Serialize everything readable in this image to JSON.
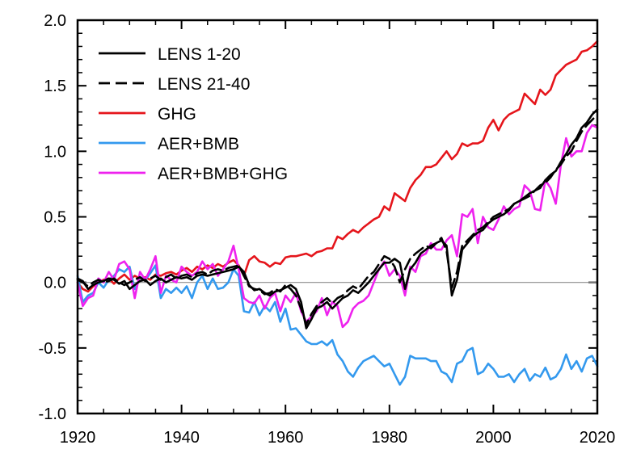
{
  "chart_data": {
    "type": "line",
    "title": "",
    "xlabel": "",
    "ylabel": "",
    "xlim": [
      1920,
      2020
    ],
    "ylim": [
      -1.0,
      2.0
    ],
    "grid": false,
    "reference_line": 0.0,
    "legend_position": "top-left",
    "x_ticks": [
      1920,
      1940,
      1960,
      1980,
      2000,
      2020
    ],
    "y_ticks": [
      -1.0,
      -0.5,
      0.0,
      0.5,
      1.0,
      1.5,
      2.0
    ],
    "x_tick_labels": [
      "1920",
      "1940",
      "1960",
      "1980",
      "2000",
      "2020"
    ],
    "y_tick_labels": [
      "-1.0",
      "-0.5",
      "0.0",
      "0.5",
      "1.0",
      "1.5",
      "2.0"
    ],
    "x": [
      1920,
      1921,
      1922,
      1923,
      1924,
      1925,
      1926,
      1927,
      1928,
      1929,
      1930,
      1931,
      1932,
      1933,
      1934,
      1935,
      1936,
      1937,
      1938,
      1939,
      1940,
      1941,
      1942,
      1943,
      1944,
      1945,
      1946,
      1947,
      1948,
      1949,
      1950,
      1951,
      1952,
      1953,
      1954,
      1955,
      1956,
      1957,
      1958,
      1959,
      1960,
      1961,
      1962,
      1963,
      1964,
      1965,
      1966,
      1967,
      1968,
      1969,
      1970,
      1971,
      1972,
      1973,
      1974,
      1975,
      1976,
      1977,
      1978,
      1979,
      1980,
      1981,
      1982,
      1983,
      1984,
      1985,
      1986,
      1987,
      1988,
      1989,
      1990,
      1991,
      1992,
      1993,
      1994,
      1995,
      1996,
      1997,
      1998,
      1999,
      2000,
      2001,
      2002,
      2003,
      2004,
      2005,
      2006,
      2007,
      2008,
      2009,
      2010,
      2011,
      2012,
      2013,
      2014,
      2015,
      2016,
      2017,
      2018,
      2019,
      2020
    ],
    "series": [
      {
        "name": "LENS 1-20",
        "color": "#000000",
        "dash": "solid",
        "values": [
          0.03,
          0.01,
          -0.05,
          -0.02,
          0.0,
          0.01,
          0.03,
          0.02,
          -0.01,
          0.01,
          -0.05,
          -0.02,
          0.01,
          0.02,
          -0.02,
          0.01,
          0.03,
          0.0,
          0.02,
          0.04,
          0.03,
          0.04,
          0.02,
          0.05,
          0.06,
          0.05,
          0.06,
          0.07,
          0.08,
          0.09,
          0.1,
          0.12,
          0.08,
          -0.02,
          -0.06,
          -0.05,
          -0.08,
          -0.1,
          -0.07,
          -0.06,
          -0.04,
          -0.02,
          -0.05,
          -0.15,
          -0.35,
          -0.28,
          -0.2,
          -0.18,
          -0.15,
          -0.2,
          -0.16,
          -0.12,
          -0.1,
          -0.06,
          -0.08,
          -0.04,
          0.0,
          0.05,
          0.1,
          0.15,
          0.15,
          0.18,
          0.15,
          -0.05,
          0.1,
          0.15,
          0.22,
          0.25,
          0.28,
          0.3,
          0.32,
          0.28,
          -0.1,
          0.02,
          0.25,
          0.3,
          0.35,
          0.38,
          0.4,
          0.45,
          0.48,
          0.5,
          0.52,
          0.55,
          0.6,
          0.62,
          0.65,
          0.68,
          0.7,
          0.72,
          0.78,
          0.82,
          0.85,
          0.92,
          0.98,
          1.05,
          1.1,
          1.18,
          1.22,
          1.28,
          1.32
        ]
      },
      {
        "name": "LENS 21-40",
        "color": "#000000",
        "dash": "dashed",
        "values": [
          0.02,
          0.0,
          -0.03,
          0.0,
          0.02,
          0.0,
          0.01,
          0.03,
          0.0,
          -0.02,
          0.0,
          0.02,
          0.04,
          0.01,
          0.03,
          0.05,
          0.02,
          0.04,
          0.06,
          0.03,
          0.05,
          0.06,
          0.04,
          0.07,
          0.08,
          0.06,
          0.09,
          0.1,
          0.09,
          0.11,
          0.12,
          0.13,
          0.05,
          -0.03,
          -0.05,
          -0.06,
          -0.09,
          -0.08,
          -0.05,
          -0.07,
          -0.02,
          -0.05,
          -0.1,
          -0.2,
          -0.32,
          -0.24,
          -0.18,
          -0.15,
          -0.12,
          -0.16,
          -0.12,
          -0.1,
          -0.06,
          -0.03,
          -0.05,
          0.0,
          0.05,
          0.08,
          0.14,
          0.2,
          0.18,
          0.12,
          0.0,
          0.1,
          0.18,
          0.22,
          0.25,
          0.28,
          0.26,
          0.3,
          0.34,
          0.24,
          -0.04,
          0.08,
          0.28,
          0.32,
          0.36,
          0.4,
          0.42,
          0.46,
          0.5,
          0.52,
          0.54,
          0.56,
          0.6,
          0.62,
          0.64,
          0.66,
          0.7,
          0.74,
          0.76,
          0.8,
          0.86,
          0.9,
          0.96,
          1.0,
          1.08,
          1.15,
          1.2,
          1.24,
          1.28
        ]
      },
      {
        "name": "GHG",
        "color": "#e5151b",
        "dash": "solid",
        "values": [
          0.0,
          -0.05,
          -0.07,
          -0.03,
          0.0,
          0.02,
          0.03,
          -0.01,
          0.03,
          0.06,
          0.02,
          0.05,
          0.03,
          0.04,
          0.02,
          0.06,
          0.05,
          0.07,
          0.08,
          0.06,
          0.09,
          0.11,
          0.08,
          0.12,
          0.1,
          0.13,
          0.11,
          0.14,
          0.12,
          0.15,
          0.17,
          0.13,
          0.05,
          0.17,
          0.2,
          0.16,
          0.15,
          0.12,
          0.15,
          0.14,
          0.19,
          0.2,
          0.2,
          0.21,
          0.22,
          0.2,
          0.23,
          0.24,
          0.26,
          0.26,
          0.35,
          0.33,
          0.37,
          0.4,
          0.38,
          0.42,
          0.45,
          0.48,
          0.5,
          0.58,
          0.55,
          0.68,
          0.65,
          0.62,
          0.72,
          0.78,
          0.82,
          0.88,
          0.88,
          0.9,
          0.95,
          1.0,
          0.94,
          0.98,
          1.06,
          1.04,
          1.06,
          1.06,
          1.08,
          1.18,
          1.24,
          1.16,
          1.24,
          1.28,
          1.3,
          1.32,
          1.44,
          1.4,
          1.36,
          1.47,
          1.43,
          1.47,
          1.58,
          1.62,
          1.66,
          1.68,
          1.7,
          1.76,
          1.77,
          1.8,
          1.84
        ]
      },
      {
        "name": "AER+BMB",
        "color": "#3399ee",
        "dash": "solid",
        "values": [
          0.05,
          -0.15,
          -0.1,
          -0.08,
          0.0,
          -0.04,
          0.02,
          0.05,
          0.1,
          0.08,
          0.12,
          -0.05,
          0.04,
          0.02,
          0.07,
          0.13,
          -0.12,
          -0.05,
          -0.08,
          -0.04,
          -0.08,
          -0.03,
          -0.12,
          0.0,
          0.05,
          -0.05,
          0.03,
          -0.05,
          -0.04,
          0.0,
          0.1,
          0.05,
          -0.22,
          -0.23,
          -0.15,
          -0.25,
          -0.18,
          -0.22,
          -0.15,
          -0.3,
          -0.2,
          -0.36,
          -0.35,
          -0.4,
          -0.45,
          -0.47,
          -0.47,
          -0.45,
          -0.48,
          -0.44,
          -0.55,
          -0.6,
          -0.68,
          -0.72,
          -0.65,
          -0.6,
          -0.58,
          -0.56,
          -0.6,
          -0.64,
          -0.62,
          -0.7,
          -0.78,
          -0.72,
          -0.56,
          -0.58,
          -0.58,
          -0.58,
          -0.6,
          -0.6,
          -0.68,
          -0.7,
          -0.76,
          -0.62,
          -0.6,
          -0.52,
          -0.5,
          -0.7,
          -0.68,
          -0.62,
          -0.66,
          -0.72,
          -0.72,
          -0.7,
          -0.76,
          -0.7,
          -0.66,
          -0.75,
          -0.7,
          -0.72,
          -0.65,
          -0.74,
          -0.72,
          -0.66,
          -0.55,
          -0.66,
          -0.6,
          -0.68,
          -0.58,
          -0.56,
          -0.64
        ]
      },
      {
        "name": "AER+BMB+GHG",
        "color": "#ee22ee",
        "dash": "solid",
        "values": [
          0.0,
          -0.18,
          -0.12,
          -0.1,
          0.03,
          0.0,
          0.08,
          0.02,
          0.14,
          0.16,
          0.1,
          -0.12,
          0.08,
          0.02,
          0.1,
          0.2,
          -0.08,
          0.05,
          0.02,
          0.0,
          0.12,
          0.08,
          0.05,
          0.08,
          0.16,
          0.1,
          0.14,
          0.05,
          0.1,
          0.16,
          0.28,
          0.1,
          -0.12,
          -0.15,
          -0.16,
          -0.1,
          -0.2,
          -0.12,
          -0.08,
          -0.22,
          -0.1,
          -0.15,
          -0.08,
          -0.22,
          -0.3,
          -0.26,
          -0.22,
          -0.12,
          -0.25,
          -0.15,
          -0.18,
          -0.34,
          -0.3,
          -0.2,
          -0.16,
          -0.14,
          -0.1,
          0.0,
          0.1,
          0.16,
          0.05,
          0.1,
          0.05,
          -0.1,
          0.12,
          0.08,
          0.2,
          0.22,
          0.3,
          0.25,
          0.25,
          0.32,
          0.36,
          0.2,
          0.52,
          0.5,
          0.56,
          0.3,
          0.5,
          0.42,
          0.4,
          0.48,
          0.58,
          0.52,
          0.56,
          0.58,
          0.74,
          0.7,
          0.56,
          0.55,
          0.78,
          0.72,
          0.6,
          0.9,
          1.1,
          0.96,
          1.0,
          1.0,
          1.14,
          1.2,
          1.18
        ]
      }
    ]
  }
}
